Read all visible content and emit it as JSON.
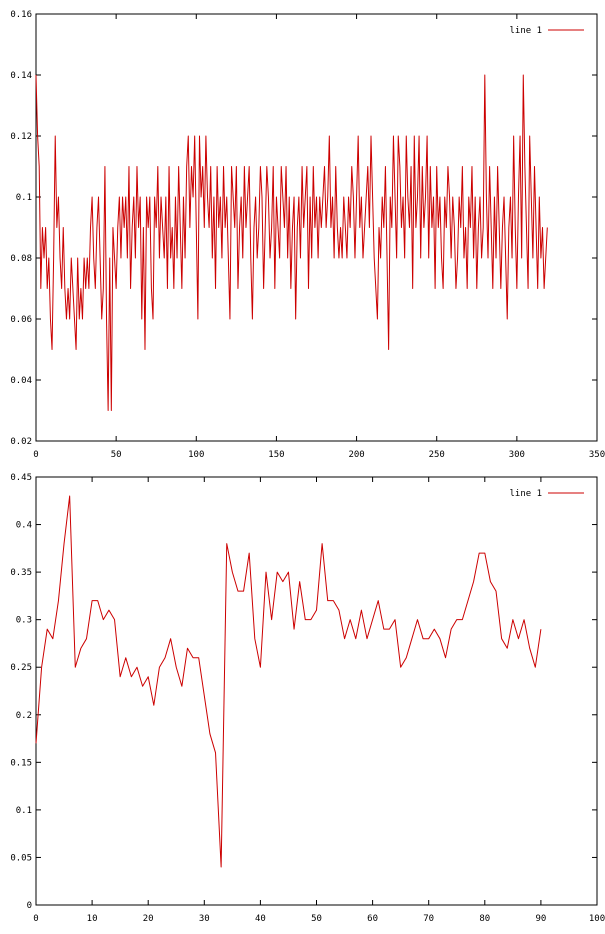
{
  "chart_data": [
    {
      "type": "line",
      "title": "",
      "xlabel": "",
      "ylabel": "",
      "xlim": [
        0,
        350
      ],
      "ylim": [
        0.02,
        0.16
      ],
      "xticks": [
        "0",
        "50",
        "100",
        "150",
        "200",
        "250",
        "300",
        "350"
      ],
      "yticks": [
        "0.02",
        "0.04",
        "0.06",
        "0.08",
        "0.1",
        "0.12",
        "0.14",
        "0.16"
      ],
      "grid": false,
      "legend": "top-right",
      "color": "#cc0000",
      "series": [
        {
          "name": "line 1",
          "x_start": 0,
          "values": [
            0.14,
            0.12,
            0.11,
            0.07,
            0.09,
            0.08,
            0.09,
            0.07,
            0.08,
            0.06,
            0.05,
            0.08,
            0.12,
            0.09,
            0.1,
            0.08,
            0.07,
            0.09,
            0.07,
            0.06,
            0.07,
            0.06,
            0.08,
            0.07,
            0.06,
            0.05,
            0.08,
            0.06,
            0.07,
            0.06,
            0.08,
            0.07,
            0.08,
            0.07,
            0.09,
            0.1,
            0.08,
            0.07,
            0.09,
            0.1,
            0.08,
            0.06,
            0.07,
            0.11,
            0.06,
            0.03,
            0.08,
            0.03,
            0.09,
            0.08,
            0.07,
            0.09,
            0.1,
            0.08,
            0.1,
            0.09,
            0.1,
            0.08,
            0.11,
            0.07,
            0.09,
            0.1,
            0.08,
            0.11,
            0.09,
            0.1,
            0.06,
            0.09,
            0.05,
            0.1,
            0.09,
            0.1,
            0.07,
            0.06,
            0.1,
            0.09,
            0.11,
            0.08,
            0.1,
            0.09,
            0.08,
            0.1,
            0.07,
            0.11,
            0.08,
            0.09,
            0.07,
            0.1,
            0.08,
            0.11,
            0.09,
            0.07,
            0.1,
            0.08,
            0.11,
            0.12,
            0.09,
            0.11,
            0.1,
            0.12,
            0.09,
            0.06,
            0.12,
            0.1,
            0.11,
            0.09,
            0.12,
            0.1,
            0.09,
            0.11,
            0.08,
            0.1,
            0.07,
            0.11,
            0.09,
            0.1,
            0.08,
            0.11,
            0.09,
            0.1,
            0.08,
            0.06,
            0.11,
            0.1,
            0.09,
            0.11,
            0.07,
            0.09,
            0.1,
            0.08,
            0.11,
            0.09,
            0.1,
            0.11,
            0.08,
            0.06,
            0.09,
            0.1,
            0.08,
            0.09,
            0.11,
            0.1,
            0.07,
            0.09,
            0.11,
            0.1,
            0.08,
            0.09,
            0.11,
            0.07,
            0.1,
            0.09,
            0.08,
            0.11,
            0.1,
            0.09,
            0.11,
            0.08,
            0.1,
            0.07,
            0.09,
            0.1,
            0.06,
            0.09,
            0.1,
            0.08,
            0.11,
            0.09,
            0.1,
            0.11,
            0.07,
            0.1,
            0.08,
            0.11,
            0.09,
            0.1,
            0.08,
            0.1,
            0.09,
            0.1,
            0.11,
            0.09,
            0.1,
            0.12,
            0.09,
            0.1,
            0.08,
            0.11,
            0.09,
            0.08,
            0.09,
            0.08,
            0.1,
            0.09,
            0.08,
            0.1,
            0.09,
            0.11,
            0.1,
            0.08,
            0.1,
            0.12,
            0.09,
            0.1,
            0.08,
            0.09,
            0.1,
            0.11,
            0.09,
            0.12,
            0.1,
            0.08,
            0.07,
            0.06,
            0.09,
            0.08,
            0.1,
            0.09,
            0.11,
            0.08,
            0.05,
            0.1,
            0.09,
            0.12,
            0.1,
            0.08,
            0.12,
            0.11,
            0.09,
            0.1,
            0.08,
            0.12,
            0.1,
            0.09,
            0.11,
            0.07,
            0.12,
            0.09,
            0.1,
            0.12,
            0.08,
            0.11,
            0.09,
            0.1,
            0.12,
            0.08,
            0.11,
            0.09,
            0.1,
            0.07,
            0.11,
            0.09,
            0.1,
            0.08,
            0.07,
            0.1,
            0.09,
            0.11,
            0.1,
            0.08,
            0.1,
            0.09,
            0.07,
            0.08,
            0.1,
            0.09,
            0.11,
            0.08,
            0.09,
            0.07,
            0.1,
            0.09,
            0.11,
            0.08,
            0.1,
            0.07,
            0.09,
            0.1,
            0.08,
            0.09,
            0.14,
            0.1,
            0.08,
            0.11,
            0.09,
            0.07,
            0.1,
            0.08,
            0.11,
            0.09,
            0.07,
            0.09,
            0.1,
            0.08,
            0.06,
            0.09,
            0.1,
            0.08,
            0.12,
            0.09,
            0.07,
            0.1,
            0.12,
            0.08,
            0.14,
            0.11,
            0.09,
            0.07,
            0.12,
            0.1,
            0.08,
            0.11,
            0.09,
            0.07,
            0.1,
            0.08,
            0.09,
            0.07,
            0.08,
            0.09
          ]
        }
      ]
    },
    {
      "type": "line",
      "title": "",
      "xlabel": "",
      "ylabel": "",
      "xlim": [
        0,
        100
      ],
      "ylim": [
        0,
        0.45
      ],
      "xticks": [
        "0",
        "10",
        "20",
        "30",
        "40",
        "50",
        "60",
        "70",
        "80",
        "90",
        "100"
      ],
      "yticks": [
        "0",
        "0.05",
        "0.1",
        "0.15",
        "0.2",
        "0.25",
        "0.3",
        "0.35",
        "0.4",
        "0.45"
      ],
      "grid": false,
      "legend": "top-right",
      "color": "#cc0000",
      "series": [
        {
          "name": "line 1",
          "x_start": 0,
          "values": [
            0.17,
            0.25,
            0.29,
            0.28,
            0.32,
            0.38,
            0.43,
            0.25,
            0.27,
            0.28,
            0.32,
            0.32,
            0.3,
            0.31,
            0.3,
            0.24,
            0.26,
            0.24,
            0.25,
            0.23,
            0.24,
            0.21,
            0.25,
            0.26,
            0.28,
            0.25,
            0.23,
            0.27,
            0.26,
            0.26,
            0.22,
            0.18,
            0.16,
            0.04,
            0.38,
            0.35,
            0.33,
            0.33,
            0.37,
            0.28,
            0.25,
            0.35,
            0.3,
            0.35,
            0.34,
            0.35,
            0.29,
            0.34,
            0.3,
            0.3,
            0.31,
            0.38,
            0.32,
            0.32,
            0.31,
            0.28,
            0.3,
            0.28,
            0.31,
            0.28,
            0.3,
            0.32,
            0.29,
            0.29,
            0.3,
            0.25,
            0.26,
            0.28,
            0.3,
            0.28,
            0.28,
            0.29,
            0.28,
            0.26,
            0.29,
            0.3,
            0.3,
            0.32,
            0.34,
            0.37,
            0.37,
            0.34,
            0.33,
            0.28,
            0.27,
            0.3,
            0.28,
            0.3,
            0.27,
            0.25,
            0.29
          ]
        }
      ]
    }
  ]
}
